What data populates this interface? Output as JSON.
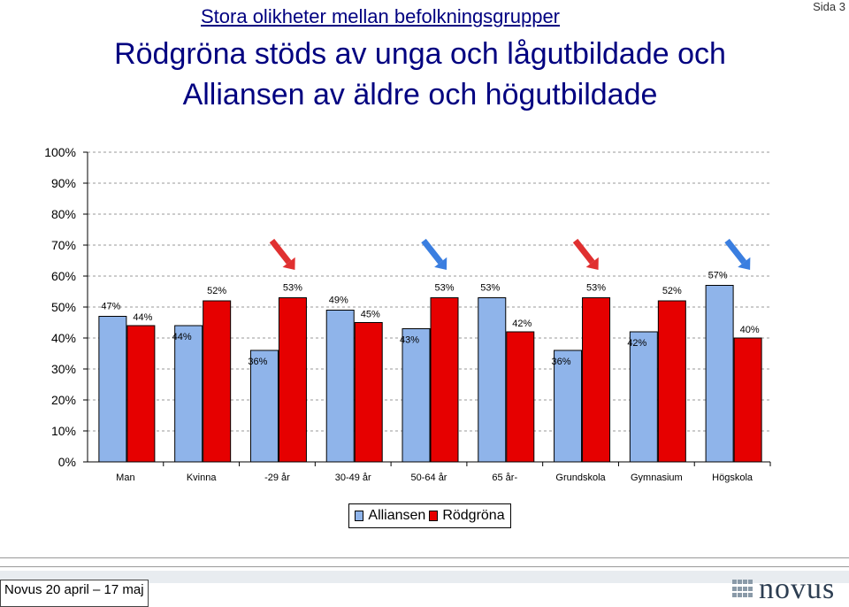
{
  "page": {
    "page_label": "Sida 3"
  },
  "header": {
    "subtitle": "Stora olikheter mellan befolkningsgrupper",
    "title_line1": "Rödgröna stöds av unga och lågutbildade och",
    "title_line2": "Alliansen av äldre och högutbildade"
  },
  "chart_data": {
    "type": "bar",
    "categories": [
      "Man",
      "Kvinna",
      "-29 år",
      "30-49 år",
      "50-64 år",
      "65 år-",
      "Grundskola",
      "Gymnasium",
      "Högskola"
    ],
    "series": [
      {
        "name": "Alliansen",
        "color": "#8fb4ea",
        "values": [
          47,
          44,
          36,
          49,
          43,
          53,
          36,
          42,
          57
        ]
      },
      {
        "name": "Rödgröna",
        "color": "#e60000",
        "values": [
          44,
          52,
          53,
          45,
          53,
          42,
          53,
          52,
          40
        ]
      }
    ],
    "value_labels": {
      "Alliansen": [
        "47%",
        "44%",
        "36%",
        "49%",
        "43%",
        "53%",
        "36%",
        "42%",
        "57%"
      ],
      "Rödgröna": [
        "44%",
        "52%",
        "53%",
        "45%",
        "53%",
        "42%",
        "53%",
        "52%",
        "40%"
      ]
    },
    "y_ticks": [
      "0%",
      "10%",
      "20%",
      "30%",
      "40%",
      "50%",
      "60%",
      "70%",
      "80%",
      "90%",
      "100%"
    ],
    "ylim": [
      0,
      100
    ],
    "grid": true,
    "legend_position": "bottom",
    "annotations": [
      {
        "type": "arrow",
        "category": "-29 år",
        "color": "#e03030",
        "direction": "down-right"
      },
      {
        "type": "arrow",
        "category": "50-64 år",
        "color": "#3a7ee0",
        "direction": "down-right"
      },
      {
        "type": "arrow",
        "category": "Grundskola",
        "color": "#e03030",
        "direction": "down-right"
      },
      {
        "type": "arrow",
        "category": "Högskola",
        "color": "#3a7ee0",
        "direction": "down-right"
      }
    ]
  },
  "legend": {
    "items": [
      "Alliansen",
      "Rödgröna"
    ]
  },
  "footer": {
    "date": "Novus 20 april – 17 maj",
    "logo_text": "novus"
  }
}
